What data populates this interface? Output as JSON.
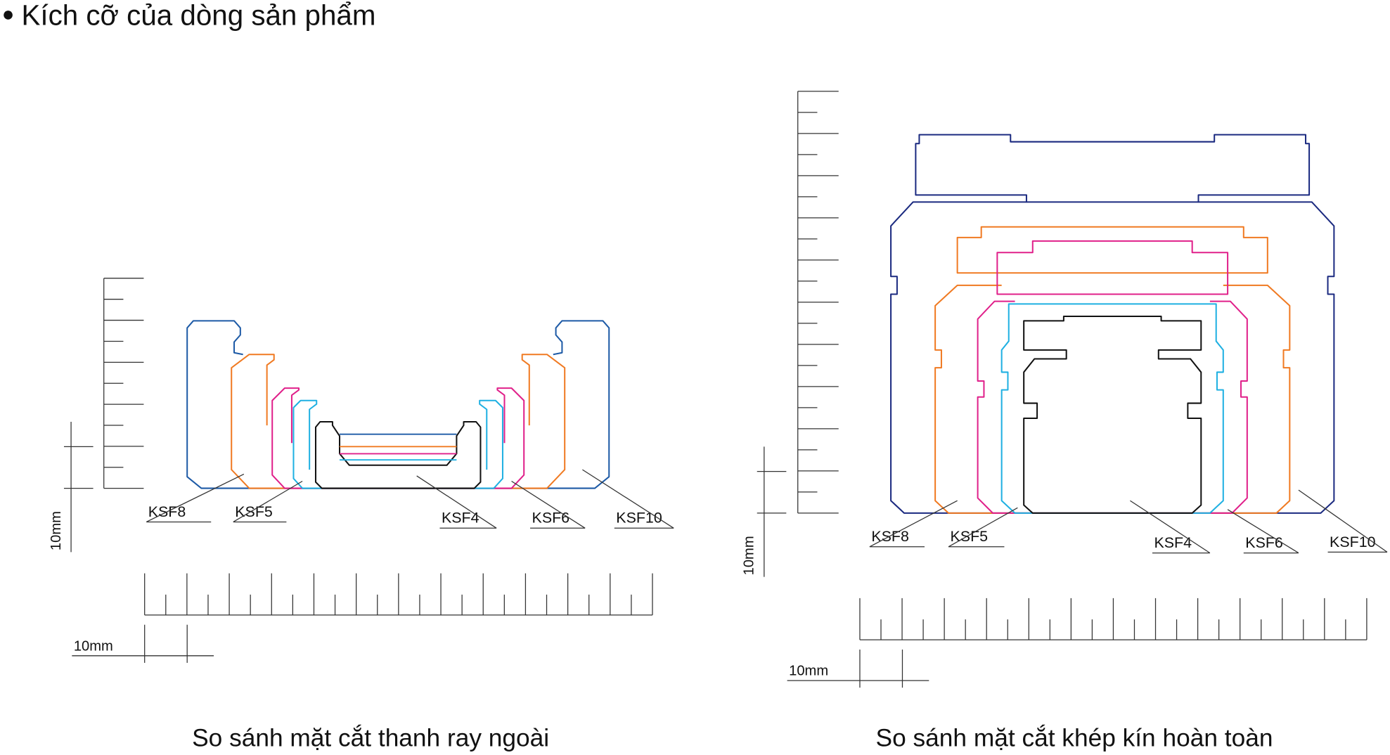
{
  "title": "Kích cỡ của dòng sản phẩm",
  "panels": [
    {
      "caption": "So sánh mặt cắt thanh ray ngoài",
      "labels": [
        "KSF8",
        "KSF5",
        "KSF4",
        "KSF6",
        "KSF10"
      ],
      "scale_vertical": "10mm",
      "scale_horizontal": "10mm"
    },
    {
      "caption": "So sánh mặt cắt khép kín hoàn toàn",
      "labels": [
        "KSF8",
        "KSF5",
        "KSF4",
        "KSF6",
        "KSF10"
      ],
      "scale_vertical": "10mm",
      "scale_horizontal": "10mm"
    }
  ]
}
